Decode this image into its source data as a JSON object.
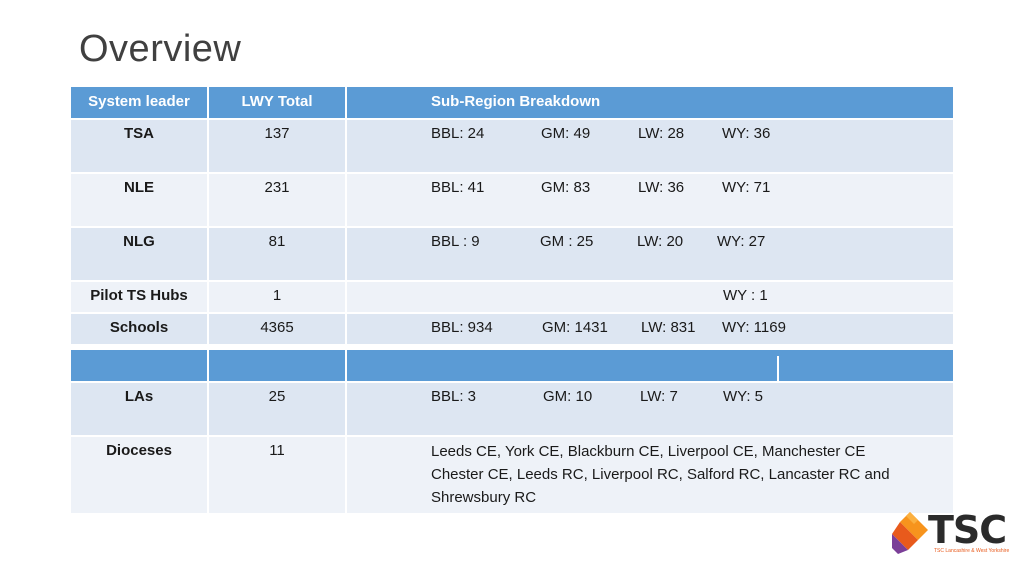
{
  "title": "Overview",
  "header": {
    "col1": "System leader",
    "col2": "LWY Total",
    "col3": "Sub-Region Breakdown"
  },
  "rows1": [
    {
      "leader": "TSA",
      "total": "137",
      "bbl": "BBL: 24",
      "gm": "GM: 49",
      "lw": "LW: 28",
      "wy": "WY: 36"
    },
    {
      "leader": "NLE",
      "total": "231",
      "bbl": "BBL: 41",
      "gm": "GM: 83",
      "lw": "LW: 36",
      "wy": "WY: 71"
    },
    {
      "leader": "NLG",
      "total": "81",
      "bbl": "BBL : 9",
      "gm": "GM : 25",
      "lw": "LW: 20",
      "wy": "WY: 27"
    },
    {
      "leader": "Pilot TS Hubs",
      "total": "1",
      "wy": "WY : 1"
    },
    {
      "leader": "Schools",
      "total": "4365",
      "bbl": "BBL: 934",
      "gm": "GM: 1431",
      "lw": "LW: 831",
      "wy": "WY: 1169"
    }
  ],
  "rows2": [
    {
      "leader": "LAs",
      "total": "25",
      "bbl": "BBL: 3",
      "gm": "GM: 10",
      "lw": "LW: 7",
      "wy": "WY: 5"
    },
    {
      "leader": "Dioceses",
      "total": "11",
      "desc": "Leeds CE, York CE, Blackburn CE, Liverpool CE, Manchester CE Chester CE, Leeds RC, Liverpool RC, Salford RC, Lancaster RC and Shrewsbury RC"
    }
  ],
  "logo": {
    "text": "TSC",
    "subtext": "TSC Lancashire & West Yorkshire",
    "colors": [
      "#f7941d",
      "#e85a1c",
      "#7b3f98",
      "#2b2b2b"
    ]
  },
  "colors": {
    "header_bg": "#5b9bd5",
    "row_bg": "#dde6f2",
    "row_alt_bg": "#eef2f8",
    "title": "#404040"
  }
}
